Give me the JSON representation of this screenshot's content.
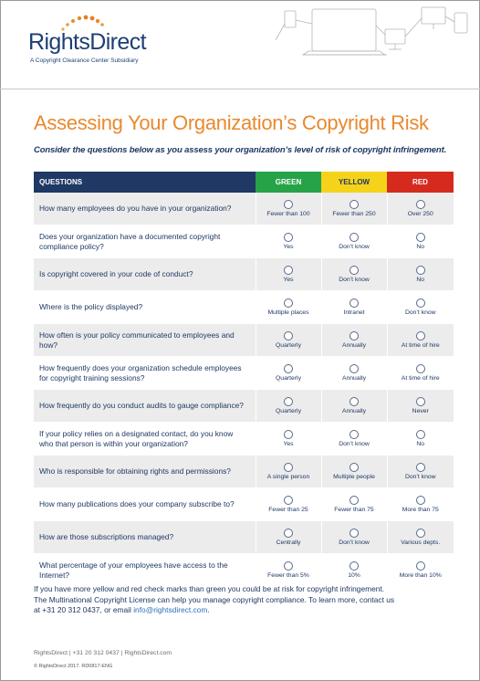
{
  "brand": {
    "name": "RightsDirect",
    "subsidiary": "A Copyright Clearance Center Subsidiary"
  },
  "colors": {
    "navy": "#1f3864",
    "orange": "#e8892e",
    "green": "#26a348",
    "yellow": "#f5d31a",
    "red": "#d52b1e"
  },
  "title": "Assessing Your Organization’s Copyright Risk",
  "subtitle": "Consider the questions below as you assess your organization’s level of risk of copyright infringement.",
  "table": {
    "headers": [
      "QUESTIONS",
      "GREEN",
      "YELLOW",
      "RED"
    ],
    "rows": [
      {
        "question": "How many employees do you have in your organization?",
        "green": "Fewer than 100",
        "yellow": "Fewer than 250",
        "red": "Over 250"
      },
      {
        "question": "Does your organization have a documented copyright compliance policy?",
        "green": "Yes",
        "yellow": "Don’t know",
        "red": "No"
      },
      {
        "question": "Is copyright covered in your code of conduct?",
        "green": "Yes",
        "yellow": "Don’t know",
        "red": "No"
      },
      {
        "question": "Where is the policy displayed?",
        "green": "Multiple places",
        "yellow": "Intranet",
        "red": "Don’t know"
      },
      {
        "question": "How often is your policy communicated to employees and how?",
        "green": "Quarterly",
        "yellow": "Annually",
        "red": "At time of hire"
      },
      {
        "question": "How frequently does your organization schedule employees for copyright training sessions?",
        "green": "Quarterly",
        "yellow": "Annually",
        "red": "At time of hire"
      },
      {
        "question": "How frequently do you conduct audits to gauge compliance?",
        "green": "Quarterly",
        "yellow": "Annually",
        "red": "Never"
      },
      {
        "question": "If your policy relies on a designated contact, do you know who that person is within your organization?",
        "green": "Yes",
        "yellow": "Don’t know",
        "red": "No"
      },
      {
        "question": "Who is responsible for obtaining rights and permissions?",
        "green": "A single person",
        "yellow": "Multiple people",
        "red": "Don’t know"
      },
      {
        "question": "How many publications does your company subscribe to?",
        "green": "Fewer than 25",
        "yellow": "Fewer than 75",
        "red": "More than 75"
      },
      {
        "question": "How are those subscriptions managed?",
        "green": "Centrally",
        "yellow": "Don’t know",
        "red": "Various depts."
      },
      {
        "question": "What percentage of your employees have access to the Internet?",
        "green": "Fewer than 5%",
        "yellow": "10%",
        "red": "More than 10%"
      }
    ]
  },
  "footer": {
    "line1": "If you have more yellow and red check marks than green you could be at risk for copyright infringement.",
    "line2": "The Multinational Copyright License can help you manage copyright compliance. To learn more, contact us",
    "line3_prefix": "at +31 20 312 0437, or email ",
    "email": "info@rightsdirect.com",
    "line3_suffix": "."
  },
  "bottom": {
    "info": "RightsDirect  |  +31 20 312 0437  |  RightsDirect.com",
    "copyright": "© RightsDirect 2017.  RD0817-ENG"
  }
}
